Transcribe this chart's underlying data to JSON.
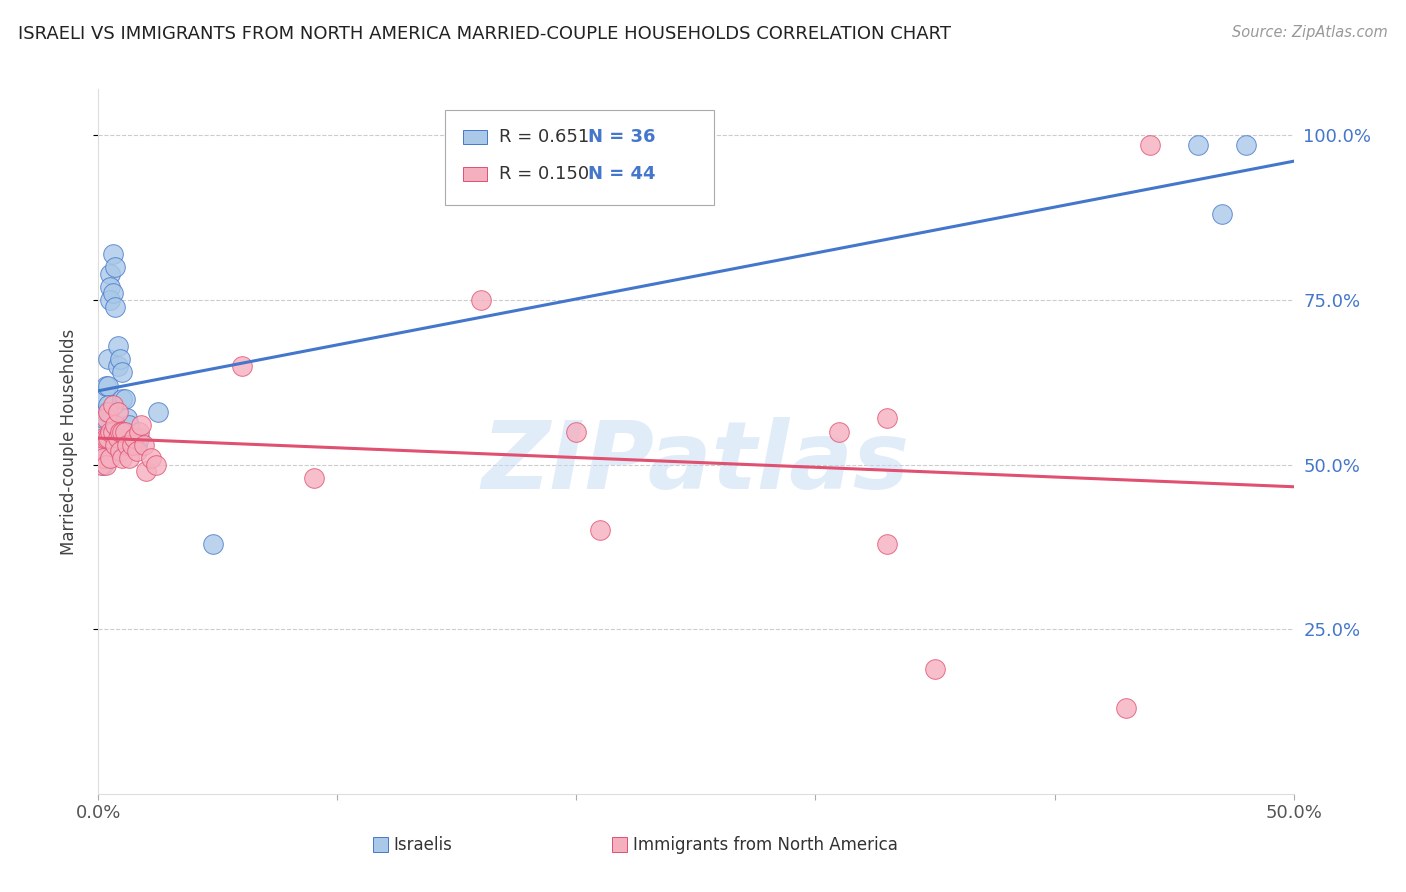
{
  "title": "ISRAELI VS IMMIGRANTS FROM NORTH AMERICA MARRIED-COUPLE HOUSEHOLDS CORRELATION CHART",
  "source": "Source: ZipAtlas.com",
  "ylabel": "Married-couple Households",
  "ytick_values": [
    1.0,
    0.75,
    0.5,
    0.25
  ],
  "xmin": 0.0,
  "xmax": 0.5,
  "ymin": 0.0,
  "ymax": 1.07,
  "israeli_R": "0.651",
  "israeli_N": "36",
  "immigrant_R": "0.150",
  "immigrant_N": "44",
  "israeli_color": "#aac9e8",
  "israeli_line_color": "#4477cc",
  "immigrant_color": "#f5b0c0",
  "immigrant_line_color": "#e05070",
  "legend_label_1": "Israelis",
  "legend_label_2": "Immigrants from North America",
  "watermark": "ZIPatlas",
  "title_color": "#222222",
  "tick_color_right": "#4477cc",
  "grid_color": "#cccccc",
  "israeli_x": [
    0.001,
    0.001,
    0.002,
    0.002,
    0.002,
    0.003,
    0.003,
    0.003,
    0.003,
    0.004,
    0.004,
    0.004,
    0.005,
    0.005,
    0.005,
    0.006,
    0.006,
    0.007,
    0.007,
    0.008,
    0.008,
    0.009,
    0.01,
    0.01,
    0.011,
    0.012,
    0.013,
    0.014,
    0.015,
    0.016,
    0.017,
    0.025,
    0.048,
    0.46,
    0.47,
    0.48
  ],
  "israeli_y": [
    0.53,
    0.56,
    0.6,
    0.57,
    0.5,
    0.62,
    0.58,
    0.54,
    0.51,
    0.66,
    0.62,
    0.59,
    0.79,
    0.77,
    0.75,
    0.82,
    0.76,
    0.8,
    0.74,
    0.68,
    0.65,
    0.66,
    0.64,
    0.6,
    0.6,
    0.57,
    0.56,
    0.54,
    0.53,
    0.53,
    0.54,
    0.58,
    0.38,
    0.985,
    0.88,
    0.985
  ],
  "immigrant_x": [
    0.001,
    0.001,
    0.002,
    0.002,
    0.003,
    0.003,
    0.003,
    0.004,
    0.004,
    0.005,
    0.005,
    0.006,
    0.006,
    0.007,
    0.007,
    0.008,
    0.008,
    0.009,
    0.009,
    0.01,
    0.01,
    0.011,
    0.012,
    0.013,
    0.014,
    0.015,
    0.016,
    0.017,
    0.018,
    0.019,
    0.02,
    0.022,
    0.024,
    0.06,
    0.09,
    0.16,
    0.2,
    0.21,
    0.31,
    0.33,
    0.33,
    0.35,
    0.43,
    0.44
  ],
  "immigrant_y": [
    0.52,
    0.5,
    0.54,
    0.51,
    0.57,
    0.54,
    0.5,
    0.58,
    0.54,
    0.55,
    0.51,
    0.59,
    0.55,
    0.56,
    0.53,
    0.58,
    0.54,
    0.55,
    0.52,
    0.55,
    0.51,
    0.55,
    0.53,
    0.51,
    0.53,
    0.54,
    0.52,
    0.55,
    0.56,
    0.53,
    0.49,
    0.51,
    0.5,
    0.65,
    0.48,
    0.75,
    0.55,
    0.4,
    0.55,
    0.57,
    0.38,
    0.19,
    0.13,
    0.985
  ]
}
